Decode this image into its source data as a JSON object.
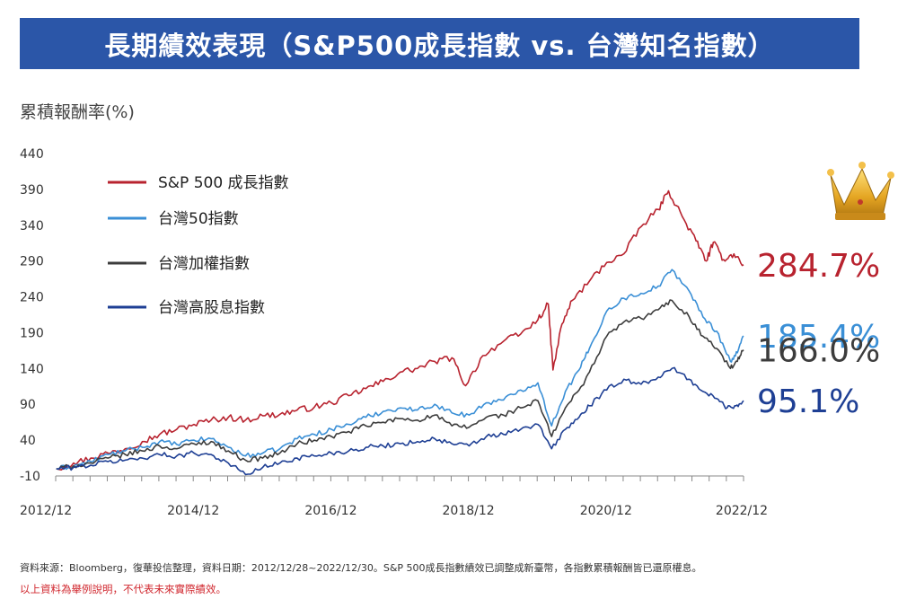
{
  "title": "長期績效表現（S&P500成長指數 vs. 台灣知名指數）",
  "ylabel": "累積報酬率(%)",
  "source_note": "資料來源：Bloomberg，復華投信整理，資料日期：2012/12/28~2022/12/30。S&P 500成長指數績效已調整成新臺幣，各指數累積報酬皆已還原權息。",
  "disclaimer": "以上資料為舉例說明，不代表未來實際績效。",
  "colors": {
    "banner": "#2b56a8"
  },
  "icons": {
    "crown": "crown-icon"
  },
  "chart_data": {
    "type": "line",
    "x_labels": [
      "2012/12",
      "2014/12",
      "2016/12",
      "2018/12",
      "2020/12",
      "2022/12"
    ],
    "x_range": [
      2012.99,
      2022.99
    ],
    "ylim": [
      -10,
      440
    ],
    "y_ticks": [
      -10,
      40,
      90,
      140,
      190,
      240,
      290,
      340,
      390,
      440
    ],
    "grid": false,
    "legend_position": "top-left",
    "series": [
      {
        "name": "S&P 500 成長指數",
        "color": "#b8232f",
        "final_label": "284.7%",
        "points": [
          [
            2013.0,
            0
          ],
          [
            2013.25,
            8
          ],
          [
            2013.5,
            15
          ],
          [
            2013.75,
            22
          ],
          [
            2014.0,
            28
          ],
          [
            2014.25,
            38
          ],
          [
            2014.5,
            48
          ],
          [
            2014.75,
            55
          ],
          [
            2015.0,
            62
          ],
          [
            2015.25,
            68
          ],
          [
            2015.5,
            72
          ],
          [
            2015.75,
            68
          ],
          [
            2016.0,
            74
          ],
          [
            2016.25,
            76
          ],
          [
            2016.5,
            82
          ],
          [
            2016.75,
            86
          ],
          [
            2017.0,
            92
          ],
          [
            2017.25,
            102
          ],
          [
            2017.5,
            112
          ],
          [
            2017.75,
            122
          ],
          [
            2018.0,
            135
          ],
          [
            2018.25,
            140
          ],
          [
            2018.5,
            150
          ],
          [
            2018.75,
            155
          ],
          [
            2018.95,
            116
          ],
          [
            2019.2,
            158
          ],
          [
            2019.5,
            178
          ],
          [
            2019.75,
            188
          ],
          [
            2020.0,
            208
          ],
          [
            2020.15,
            230
          ],
          [
            2020.22,
            138
          ],
          [
            2020.35,
            202
          ],
          [
            2020.5,
            235
          ],
          [
            2020.75,
            262
          ],
          [
            2021.0,
            288
          ],
          [
            2021.25,
            300
          ],
          [
            2021.5,
            338
          ],
          [
            2021.75,
            362
          ],
          [
            2021.9,
            388
          ],
          [
            2022.1,
            352
          ],
          [
            2022.3,
            318
          ],
          [
            2022.45,
            290
          ],
          [
            2022.55,
            316
          ],
          [
            2022.7,
            292
          ],
          [
            2022.85,
            300
          ],
          [
            2022.99,
            284.7
          ]
        ]
      },
      {
        "name": "台灣50指數",
        "color": "#3a8fd6",
        "final_label": "185.4%",
        "points": [
          [
            2013.0,
            0
          ],
          [
            2013.25,
            4
          ],
          [
            2013.5,
            10
          ],
          [
            2013.75,
            20
          ],
          [
            2014.0,
            25
          ],
          [
            2014.25,
            30
          ],
          [
            2014.5,
            38
          ],
          [
            2014.75,
            34
          ],
          [
            2015.0,
            40
          ],
          [
            2015.25,
            42
          ],
          [
            2015.5,
            30
          ],
          [
            2015.75,
            18
          ],
          [
            2016.0,
            22
          ],
          [
            2016.25,
            28
          ],
          [
            2016.5,
            42
          ],
          [
            2016.75,
            48
          ],
          [
            2017.0,
            55
          ],
          [
            2017.25,
            62
          ],
          [
            2017.5,
            72
          ],
          [
            2017.75,
            80
          ],
          [
            2018.0,
            85
          ],
          [
            2018.25,
            82
          ],
          [
            2018.5,
            90
          ],
          [
            2018.75,
            78
          ],
          [
            2019.0,
            75
          ],
          [
            2019.25,
            92
          ],
          [
            2019.5,
            96
          ],
          [
            2019.75,
            110
          ],
          [
            2020.0,
            120
          ],
          [
            2020.2,
            60
          ],
          [
            2020.4,
            108
          ],
          [
            2020.6,
            138
          ],
          [
            2020.75,
            168
          ],
          [
            2021.0,
            220
          ],
          [
            2021.25,
            238
          ],
          [
            2021.5,
            245
          ],
          [
            2021.75,
            255
          ],
          [
            2021.95,
            278
          ],
          [
            2022.2,
            248
          ],
          [
            2022.4,
            212
          ],
          [
            2022.6,
            192
          ],
          [
            2022.8,
            150
          ],
          [
            2022.9,
            162
          ],
          [
            2022.99,
            185.4
          ]
        ]
      },
      {
        "name": "台灣加權指數",
        "color": "#3c3c3c",
        "final_label": "166.0%",
        "points": [
          [
            2013.0,
            0
          ],
          [
            2013.25,
            4
          ],
          [
            2013.5,
            8
          ],
          [
            2013.75,
            15
          ],
          [
            2014.0,
            20
          ],
          [
            2014.25,
            25
          ],
          [
            2014.5,
            32
          ],
          [
            2014.75,
            28
          ],
          [
            2015.0,
            35
          ],
          [
            2015.25,
            38
          ],
          [
            2015.5,
            25
          ],
          [
            2015.75,
            12
          ],
          [
            2016.0,
            15
          ],
          [
            2016.25,
            22
          ],
          [
            2016.5,
            35
          ],
          [
            2016.75,
            40
          ],
          [
            2017.0,
            45
          ],
          [
            2017.25,
            52
          ],
          [
            2017.5,
            60
          ],
          [
            2017.75,
            65
          ],
          [
            2018.0,
            70
          ],
          [
            2018.25,
            68
          ],
          [
            2018.5,
            75
          ],
          [
            2018.75,
            60
          ],
          [
            2019.0,
            58
          ],
          [
            2019.25,
            72
          ],
          [
            2019.5,
            75
          ],
          [
            2019.75,
            85
          ],
          [
            2020.0,
            95
          ],
          [
            2020.2,
            45
          ],
          [
            2020.4,
            85
          ],
          [
            2020.6,
            110
          ],
          [
            2020.75,
            135
          ],
          [
            2021.0,
            185
          ],
          [
            2021.25,
            205
          ],
          [
            2021.5,
            210
          ],
          [
            2021.75,
            222
          ],
          [
            2021.95,
            235
          ],
          [
            2022.2,
            212
          ],
          [
            2022.4,
            185
          ],
          [
            2022.6,
            168
          ],
          [
            2022.8,
            140
          ],
          [
            2022.9,
            150
          ],
          [
            2022.99,
            166.0
          ]
        ]
      },
      {
        "name": "台灣高股息指數",
        "color": "#1e3f94",
        "final_label": "95.1%",
        "points": [
          [
            2013.0,
            0
          ],
          [
            2013.25,
            2
          ],
          [
            2013.5,
            5
          ],
          [
            2013.75,
            10
          ],
          [
            2014.0,
            12
          ],
          [
            2014.25,
            15
          ],
          [
            2014.5,
            20
          ],
          [
            2014.75,
            18
          ],
          [
            2015.0,
            22
          ],
          [
            2015.25,
            20
          ],
          [
            2015.5,
            8
          ],
          [
            2015.75,
            -8
          ],
          [
            2016.0,
            2
          ],
          [
            2016.25,
            8
          ],
          [
            2016.5,
            15
          ],
          [
            2016.75,
            18
          ],
          [
            2017.0,
            22
          ],
          [
            2017.25,
            25
          ],
          [
            2017.5,
            30
          ],
          [
            2017.75,
            32
          ],
          [
            2018.0,
            35
          ],
          [
            2018.25,
            38
          ],
          [
            2018.5,
            42
          ],
          [
            2018.75,
            35
          ],
          [
            2019.0,
            32
          ],
          [
            2019.25,
            45
          ],
          [
            2019.5,
            48
          ],
          [
            2019.75,
            55
          ],
          [
            2020.0,
            62
          ],
          [
            2020.2,
            28
          ],
          [
            2020.4,
            55
          ],
          [
            2020.6,
            72
          ],
          [
            2020.75,
            88
          ],
          [
            2021.0,
            110
          ],
          [
            2021.25,
            125
          ],
          [
            2021.5,
            118
          ],
          [
            2021.75,
            128
          ],
          [
            2021.95,
            140
          ],
          [
            2022.2,
            125
          ],
          [
            2022.4,
            108
          ],
          [
            2022.6,
            98
          ],
          [
            2022.75,
            85
          ],
          [
            2022.88,
            88
          ],
          [
            2022.99,
            95.1
          ]
        ]
      }
    ]
  }
}
